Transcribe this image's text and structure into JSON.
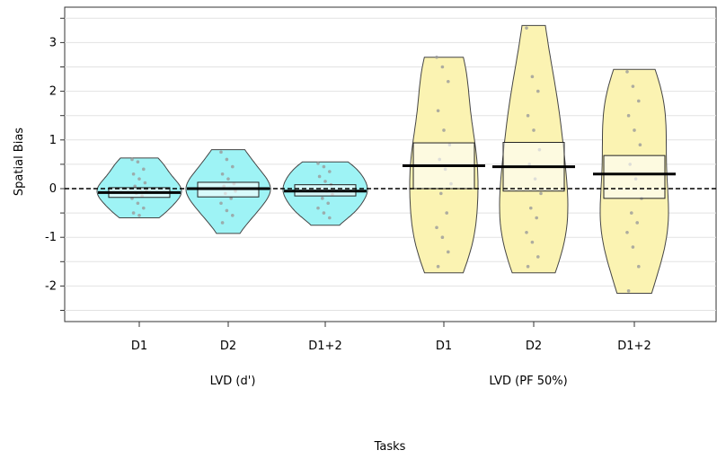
{
  "chart_data": {
    "type": "violin",
    "ylabel": "Spatial Bias",
    "xlabel": "Tasks",
    "ylim": [
      -2.65,
      3.65
    ],
    "yticks": [
      -2,
      -1,
      0,
      1,
      2,
      3
    ],
    "grid": true,
    "reference_line": 0,
    "groups": [
      {
        "label": "LVD (d')",
        "categories": [
          "D1",
          "D2",
          "D1+2"
        ],
        "color": "#9ef3f5"
      },
      {
        "label": "LVD (PF 50%)",
        "categories": [
          "D1",
          "D2",
          "D1+2"
        ],
        "color": "#fbf3b2"
      }
    ],
    "series": [
      {
        "group": 0,
        "category": "D1",
        "mean": -0.08,
        "box": [
          -0.18,
          0.02
        ],
        "range": [
          -0.6,
          0.63
        ],
        "points": [
          0.6,
          0.55,
          0.4,
          0.3,
          0.2,
          0.12,
          0.05,
          0.0,
          -0.05,
          -0.1,
          -0.15,
          -0.2,
          -0.3,
          -0.4,
          -0.5,
          -0.55
        ]
      },
      {
        "group": 0,
        "category": "D2",
        "mean": 0.0,
        "box": [
          -0.17,
          0.13
        ],
        "range": [
          -0.92,
          0.8
        ],
        "points": [
          0.75,
          0.6,
          0.45,
          0.3,
          0.2,
          0.1,
          0.05,
          0.0,
          -0.05,
          -0.1,
          -0.2,
          -0.3,
          -0.45,
          -0.55,
          -0.7
        ]
      },
      {
        "group": 0,
        "category": "D1+2",
        "mean": -0.05,
        "box": [
          -0.15,
          0.08
        ],
        "range": [
          -0.75,
          0.55
        ],
        "points": [
          0.52,
          0.45,
          0.35,
          0.25,
          0.15,
          0.08,
          0.0,
          -0.05,
          -0.12,
          -0.2,
          -0.3,
          -0.4,
          -0.5,
          -0.6
        ]
      },
      {
        "group": 1,
        "category": "D1",
        "mean": 0.47,
        "box": [
          0.0,
          0.94
        ],
        "range": [
          -1.73,
          2.7
        ],
        "points": [
          2.7,
          2.5,
          2.2,
          1.6,
          1.2,
          0.9,
          0.6,
          0.4,
          0.1,
          -0.1,
          -0.5,
          -0.8,
          -1.0,
          -1.3,
          -1.6
        ]
      },
      {
        "group": 1,
        "category": "D2",
        "mean": 0.45,
        "box": [
          -0.05,
          0.95
        ],
        "range": [
          -1.73,
          3.35
        ],
        "points": [
          3.3,
          2.3,
          2.0,
          1.5,
          1.2,
          0.8,
          0.5,
          0.2,
          -0.1,
          -0.4,
          -0.6,
          -0.9,
          -1.1,
          -1.4,
          -1.6
        ]
      },
      {
        "group": 1,
        "category": "D1+2",
        "mean": 0.3,
        "box": [
          -0.2,
          0.68
        ],
        "range": [
          -2.15,
          2.45
        ],
        "points": [
          2.4,
          2.1,
          1.8,
          1.5,
          1.2,
          0.9,
          0.5,
          0.2,
          -0.2,
          -0.5,
          -0.7,
          -0.9,
          -1.2,
          -1.6,
          -2.1
        ]
      }
    ]
  }
}
